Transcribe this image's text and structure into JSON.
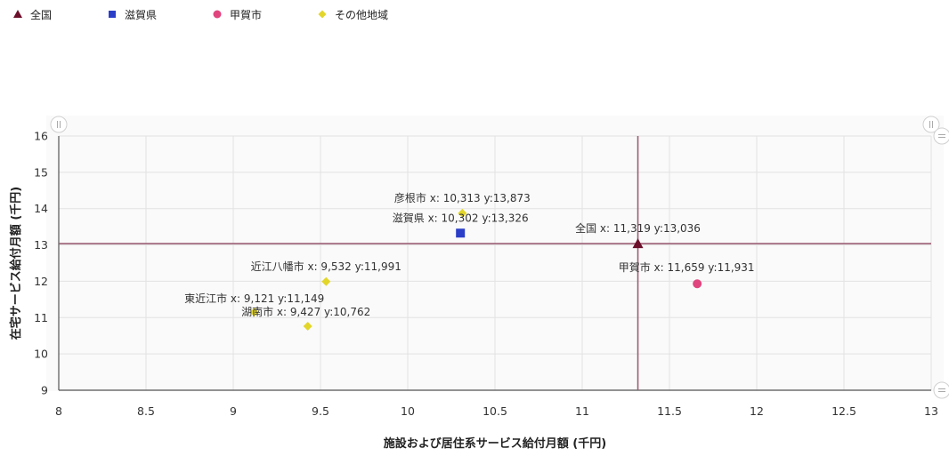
{
  "legend": [
    {
      "label": "全国",
      "marker": "triangle",
      "color": "#6b0f2a"
    },
    {
      "label": "滋賀県",
      "marker": "square",
      "color": "#2b3ec8"
    },
    {
      "label": "甲賀市",
      "marker": "circle",
      "color": "#e0457e"
    },
    {
      "label": "その他地域",
      "marker": "diamond",
      "color": "#e3d62a"
    }
  ],
  "chart_data": {
    "type": "scatter",
    "title": "",
    "xlabel": "施設および居住系サービス給付月額 (千円)",
    "ylabel": "在宅サービス給付月額 (千円)",
    "xlim": [
      8,
      13
    ],
    "ylim": [
      9,
      16
    ],
    "xticks": [
      "8",
      "8.5",
      "9",
      "9.5",
      "10",
      "10.5",
      "11",
      "11.5",
      "12",
      "12.5",
      "13"
    ],
    "yticks": [
      "9",
      "10",
      "11",
      "12",
      "13",
      "14",
      "15",
      "16"
    ],
    "grid": true,
    "legend_position": "top-left",
    "reference_lines": {
      "x": 11.319,
      "y": 13.036
    },
    "points": [
      {
        "name": "彦根市",
        "x": 10.313,
        "y": 13.873,
        "group": "その他地域",
        "label": "彦根市 x: 10,313 y:13,873"
      },
      {
        "name": "滋賀県",
        "x": 10.302,
        "y": 13.326,
        "group": "滋賀県",
        "label": "滋賀県 x: 10,302 y:13,326"
      },
      {
        "name": "全国",
        "x": 11.319,
        "y": 13.036,
        "group": "全国",
        "label": "全国 x: 11,319 y:13,036"
      },
      {
        "name": "近江八幡市",
        "x": 9.532,
        "y": 11.991,
        "group": "その他地域",
        "label": "近江八幡市 x: 9,532 y:11,991"
      },
      {
        "name": "甲賀市",
        "x": 11.659,
        "y": 11.931,
        "group": "甲賀市",
        "label": "甲賀市 x: 11,659 y:11,931"
      },
      {
        "name": "東近江市",
        "x": 9.121,
        "y": 11.149,
        "group": "その他地域",
        "label": "東近江市 x: 9,121 y:11,149"
      },
      {
        "name": "湖南市",
        "x": 9.427,
        "y": 10.762,
        "group": "その他地域",
        "label": "湖南市 x: 9,427 y:10,762"
      }
    ]
  }
}
